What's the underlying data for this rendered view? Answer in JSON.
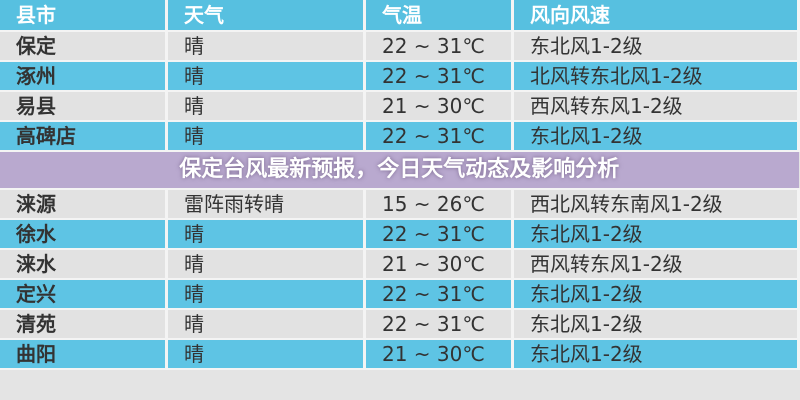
{
  "headers": [
    "县市",
    "天气",
    "气温",
    "风向风速"
  ],
  "rows": [
    [
      "保定",
      "晴",
      "22 ~ 31℃",
      "东北风1-2级"
    ],
    [
      "涿州",
      "晴",
      "22 ~ 31℃",
      "北风转东北风1-2级"
    ],
    [
      "易县",
      "晴",
      "21 ~ 30℃",
      "西风转东风1-2级"
    ],
    [
      "高碑店",
      "晴",
      "22 ~ 31℃",
      "东北风1-2级"
    ],
    [
      "涞源",
      "雷阵雨转晴",
      "15 ~ 26℃",
      "西北风转东南风1-2级"
    ],
    [
      "徐水",
      "晴",
      "22 ~ 31℃",
      "东北风1-2级"
    ],
    [
      "涞水",
      "晴",
      "21 ~ 30℃",
      "西风转东风1-2级"
    ],
    [
      "定兴",
      "晴",
      "22 ~ 31℃",
      "东北风1-2级"
    ],
    [
      "清苑",
      "晴",
      "22 ~ 31℃",
      "东北风1-2级"
    ],
    [
      "曲阳",
      "晴",
      "21 ~ 30℃",
      "东北风1-2级"
    ]
  ],
  "overlay_title": "保定台风最新预报，今日天气动态及影响分析"
}
